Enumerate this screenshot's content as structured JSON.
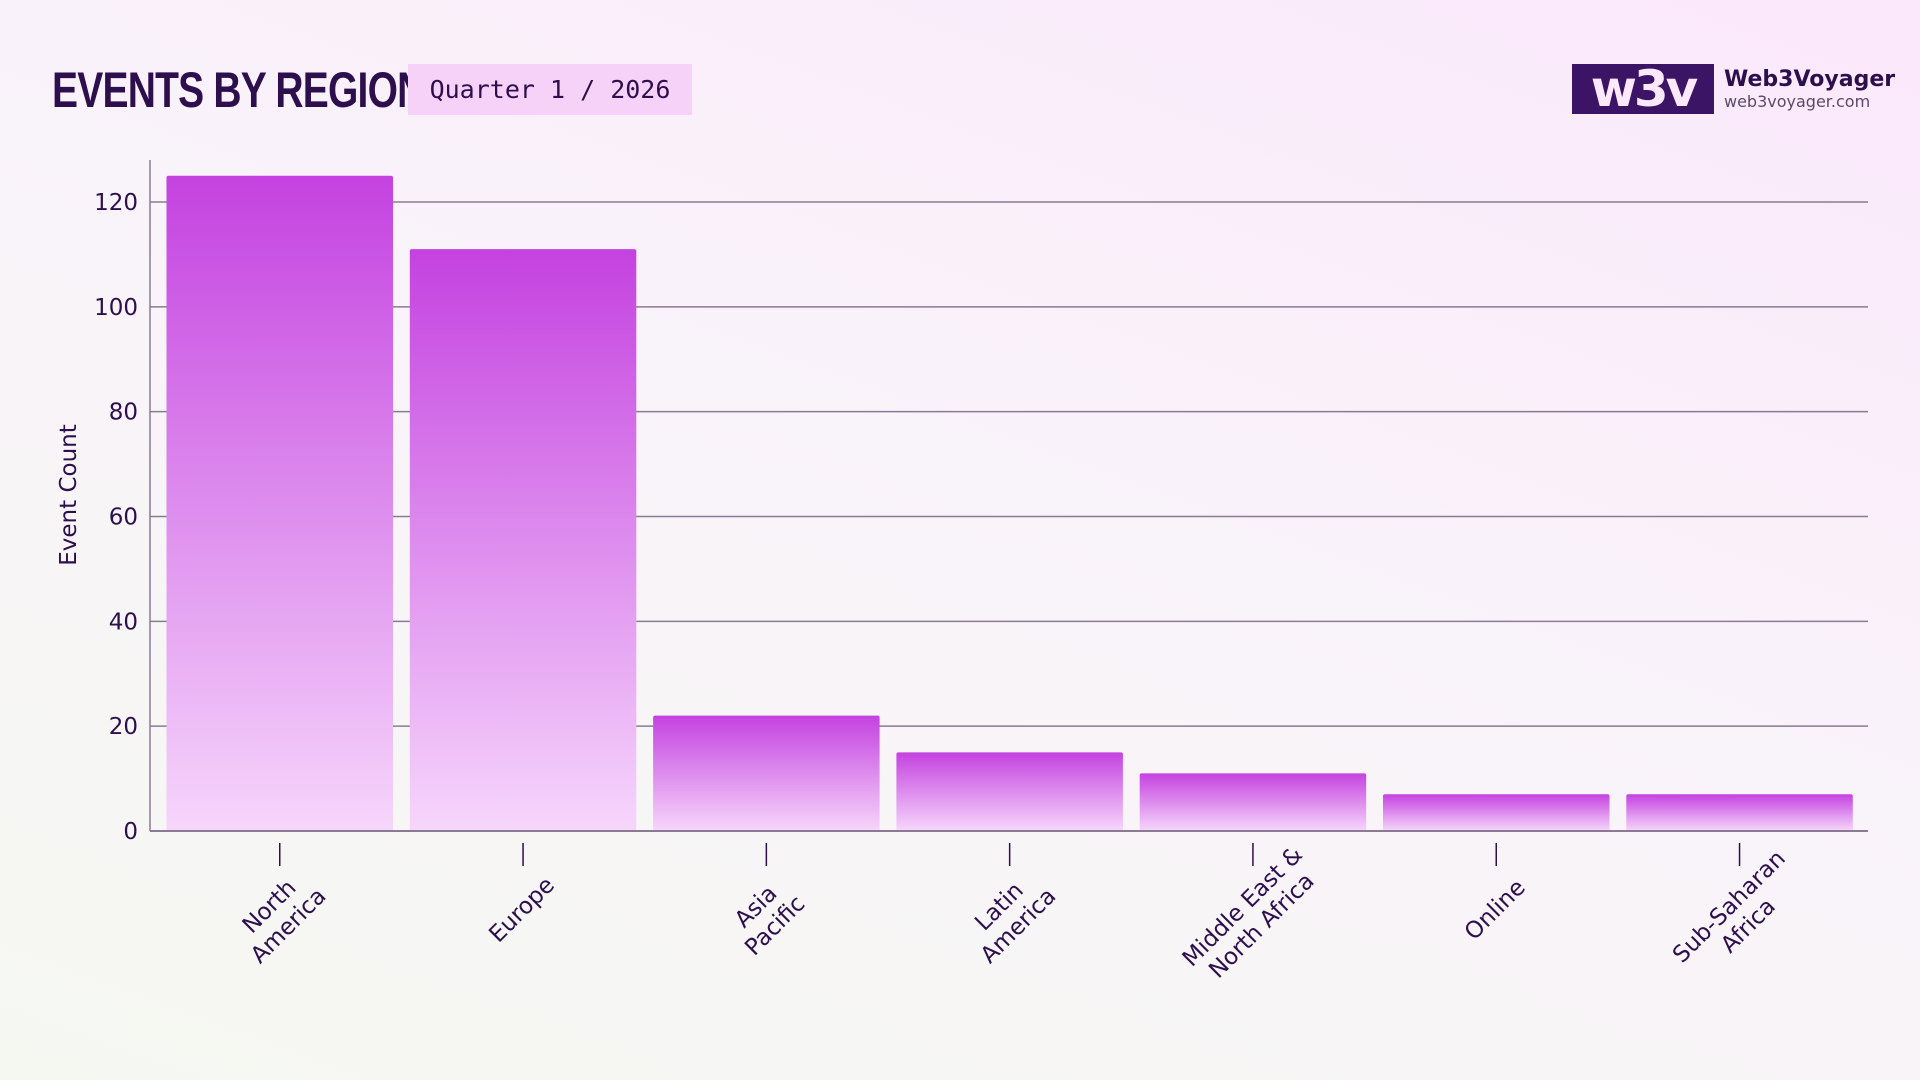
{
  "header": {
    "title": "EVENTS BY REGION",
    "badge": "Quarter 1 / 2026"
  },
  "logo": {
    "mark": "w3v",
    "name": "Web3Voyager",
    "url": "web3voyager.com"
  },
  "colors": {
    "bar_top": "#c442e0",
    "bar_bottom": "#f6d6fb",
    "text": "#2d0f4d",
    "grid": "#8a7a94"
  },
  "chart_data": {
    "type": "bar",
    "title": "",
    "xlabel": "",
    "ylabel": "Event Count",
    "categories": [
      [
        "North",
        "America"
      ],
      [
        "Europe"
      ],
      [
        "Asia",
        "Pacific"
      ],
      [
        "Latin",
        "America"
      ],
      [
        "Middle East &",
        "North Africa"
      ],
      [
        "Online"
      ],
      [
        "Sub-Saharan",
        "Africa"
      ]
    ],
    "values": [
      125,
      111,
      22,
      15,
      11,
      7,
      7
    ],
    "ylim": [
      0,
      128
    ],
    "yticks": [
      0,
      20,
      40,
      60,
      80,
      100,
      120
    ],
    "grid": true,
    "legend": "none"
  }
}
